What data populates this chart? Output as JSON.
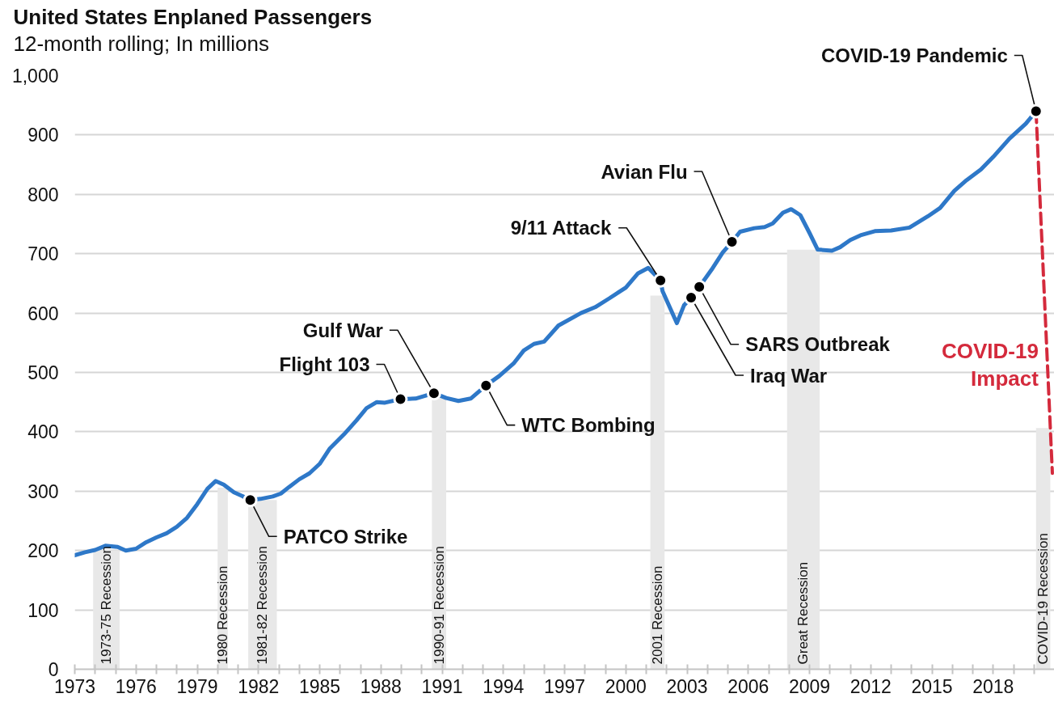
{
  "chart_data": {
    "type": "line",
    "title": "United States Enplaned Passengers",
    "subtitle": "12-month rolling; In millions",
    "series": [
      {
        "color": "#2e78c8",
        "x": [
          1973.0,
          1973.5,
          1974.0,
          1974.5,
          1975.1,
          1975.5,
          1976.0,
          1976.5,
          1977.0,
          1977.5,
          1978.0,
          1978.5,
          1979.0,
          1979.5,
          1979.9,
          1980.3,
          1980.8,
          1981.2,
          1981.6,
          1982.1,
          1982.7,
          1983.1,
          1983.5,
          1984.0,
          1984.5,
          1985.0,
          1985.5,
          1986.2,
          1986.8,
          1987.3,
          1987.8,
          1988.2,
          1988.96,
          1989.7,
          1990.6,
          1991.2,
          1991.8,
          1992.4,
          1993.15,
          1993.8,
          1994.5,
          1995.0,
          1995.5,
          1996.0,
          1996.7,
          1997.8,
          1998.5,
          1999.2,
          2000.0,
          2000.6,
          2001.1,
          2001.7,
          2001.8,
          2002.5,
          2002.85,
          2003.2,
          2003.6,
          2004.2,
          2004.75,
          2005.2,
          2005.6,
          2006.3,
          2006.8,
          2007.2,
          2007.7,
          2008.1,
          2008.55,
          2009.0,
          2009.4,
          2010.1,
          2010.5,
          2011.0,
          2011.5,
          2012.2,
          2013.0,
          2013.9,
          2014.8,
          2015.4,
          2016.1,
          2016.7,
          2017.4,
          2018.0,
          2018.8,
          2019.6,
          2020.1
        ],
        "values": [
          192,
          197,
          201,
          208,
          206,
          200,
          203,
          214,
          222,
          229,
          240,
          255,
          278,
          304,
          317,
          311,
          298,
          292,
          285,
          287,
          291,
          296,
          307,
          320,
          330,
          346,
          372,
          396,
          419,
          440,
          450,
          449,
          455,
          456,
          465,
          457,
          452,
          456,
          478,
          494,
          515,
          537,
          548,
          552,
          579,
          600,
          610,
          625,
          643,
          667,
          676,
          655,
          637,
          583,
          613,
          626,
          644,
          673,
          702,
          720,
          737,
          743,
          745,
          751,
          769,
          775,
          765,
          735,
          707,
          705,
          711,
          723,
          731,
          738,
          739,
          744,
          763,
          777,
          806,
          824,
          842,
          863,
          894,
          919,
          940
        ]
      },
      {
        "name": "COVID-19 Impact",
        "color": "#d42a3c",
        "line_style": "dashed",
        "x": [
          2020.1,
          2020.9
        ],
        "values": [
          940,
          330
        ]
      }
    ],
    "xlim": [
      1973,
      2021
    ],
    "xticks": [
      1973,
      {
        "value": 1974,
        "label": null
      },
      {
        "value": 1975,
        "label": null
      },
      1976,
      {
        "value": 1977,
        "label": null
      },
      {
        "value": 1978,
        "label": null
      },
      1979,
      {
        "value": 1980,
        "label": null
      },
      {
        "value": 1981,
        "label": null
      },
      1982,
      {
        "value": 1983,
        "label": null
      },
      {
        "value": 1984,
        "label": null
      },
      1985,
      {
        "value": 1986,
        "label": null
      },
      {
        "value": 1987,
        "label": null
      },
      1988,
      {
        "value": 1989,
        "label": null
      },
      {
        "value": 1990,
        "label": null
      },
      1991,
      {
        "value": 1992,
        "label": null
      },
      {
        "value": 1993,
        "label": null
      },
      1994,
      {
        "value": 1995,
        "label": null
      },
      {
        "value": 1996,
        "label": null
      },
      1997,
      {
        "value": 1998,
        "label": null
      },
      {
        "value": 1999,
        "label": null
      },
      2000,
      {
        "value": 2001,
        "label": null
      },
      {
        "value": 2002,
        "label": null
      },
      2003,
      {
        "value": 2004,
        "label": null
      },
      {
        "value": 2005,
        "label": null
      },
      2006,
      {
        "value": 2007,
        "label": null
      },
      {
        "value": 2008,
        "label": null
      },
      2009,
      {
        "value": 2010,
        "label": null
      },
      {
        "value": 2011,
        "label": null
      },
      2012,
      {
        "value": 2013,
        "label": null
      },
      {
        "value": 2014,
        "label": null
      },
      2015,
      {
        "value": 2016,
        "label": null
      },
      {
        "value": 2017,
        "label": null
      },
      2018,
      {
        "value": 2019,
        "label": null
      },
      {
        "value": 2020,
        "label": null
      }
    ],
    "ylim": [
      0,
      1000
    ],
    "yticks": [
      0,
      100,
      200,
      300,
      400,
      500,
      600,
      700,
      800,
      900,
      {
        "value": 1000,
        "label": "1,000"
      }
    ],
    "grid": "y",
    "bands": [
      {
        "axis": "x",
        "from": 1973.9,
        "to": 1975.2,
        "label": "1973-75 Recession",
        "color": "#e8e8e8"
      },
      {
        "axis": "x",
        "from": 1980.0,
        "to": 1980.5,
        "label": "1980 Recession",
        "color": "#e8e8e8"
      },
      {
        "axis": "x",
        "from": 1981.5,
        "to": 1982.9,
        "label": "1981-82 Recession",
        "color": "#e8e8e8"
      },
      {
        "axis": "x",
        "from": 1990.5,
        "to": 1991.2,
        "label": "1990-91 Recession",
        "color": "#e8e8e8"
      },
      {
        "axis": "x",
        "from": 2001.2,
        "to": 2001.9,
        "label": "2001 Recession",
        "color": "#e8e8e8"
      },
      {
        "axis": "x",
        "from": 2007.9,
        "to": 2009.5,
        "label": "Great Recession",
        "color": "#e8e8e8"
      },
      {
        "axis": "x",
        "from": 2020.1,
        "to": 2020.8,
        "label": "COVID-19 Recession",
        "color": "#e8e8e8"
      }
    ],
    "annotations": [
      {
        "text": "PATCO Strike",
        "x": 1981.6,
        "y": 285
      },
      {
        "text": "Flight 103",
        "x": 1988.96,
        "y": 455
      },
      {
        "text": "Gulf War",
        "x": 1990.6,
        "y": 465
      },
      {
        "text": "WTC Bombing",
        "x": 1993.15,
        "y": 478
      },
      {
        "text": "9/11 Attack",
        "x": 2001.7,
        "y": 655
      },
      {
        "text": "Iraq War",
        "x": 2003.2,
        "y": 626
      },
      {
        "text": "SARS Outbreak",
        "x": 2003.6,
        "y": 644
      },
      {
        "text": "Avian Flu",
        "x": 2005.2,
        "y": 720
      },
      {
        "text": "COVID-19 Pandemic",
        "x": 2020.1,
        "y": 940
      }
    ]
  }
}
